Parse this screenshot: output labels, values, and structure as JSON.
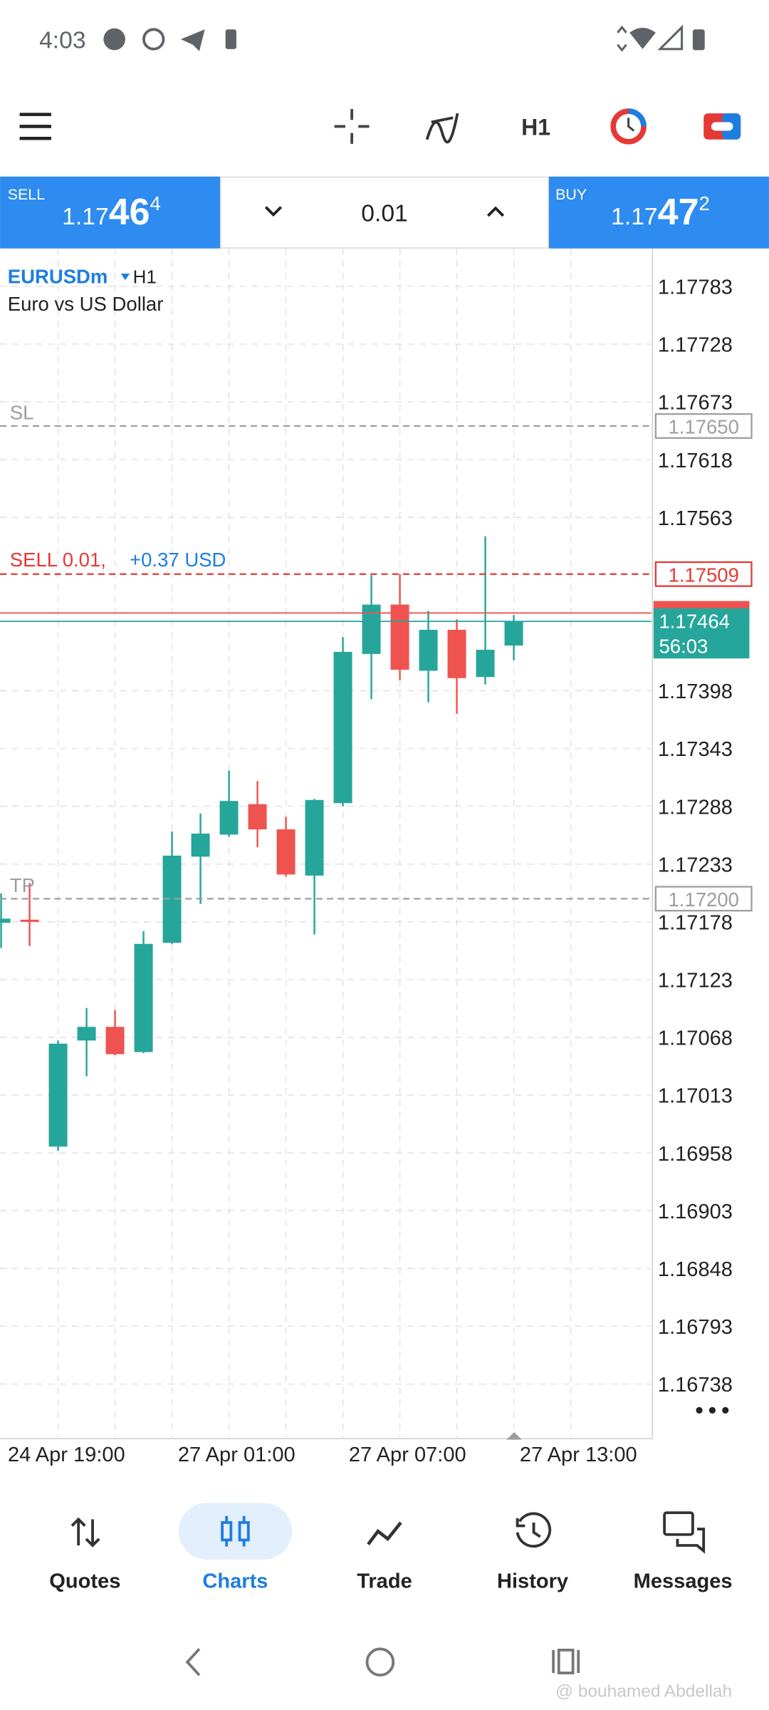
{
  "status_bar": {
    "time": "4:03"
  },
  "toolbar": {
    "timeframe": "H1"
  },
  "trade_panel": {
    "sell": {
      "label": "SELL",
      "price": {
        "prefix": "1.17",
        "main": "46",
        "suffix": "4"
      }
    },
    "volume": "0.01",
    "buy": {
      "label": "BUY",
      "price": {
        "prefix": "1.17",
        "main": "47",
        "suffix": "2"
      }
    }
  },
  "chart_data": {
    "type": "candlestick",
    "symbol": "EURUSDm",
    "timeframe": "H1",
    "description": "Euro vs US Dollar",
    "categories": [
      null,
      null,
      "24 Apr 19:00",
      null,
      null,
      null,
      null,
      null,
      "27 Apr 01:00",
      null,
      null,
      null,
      null,
      null,
      "27 Apr 07:00",
      null,
      null,
      null,
      null,
      null,
      "27 Apr 13:00"
    ],
    "open": [
      1.17177,
      1.1718,
      1.16964,
      1.17065,
      1.17078,
      1.17054,
      1.17158,
      1.1724,
      1.17261,
      1.1729,
      1.17266,
      1.17222,
      1.17291,
      1.17433,
      1.1748,
      1.17417,
      1.17456,
      1.17411,
      1.17441,
      null,
      null
    ],
    "high": [
      1.17205,
      1.17215,
      1.17065,
      1.17096,
      1.17094,
      1.17169,
      1.17264,
      1.17281,
      1.17322,
      1.17312,
      1.17278,
      1.17295,
      1.17449,
      1.17508,
      1.17509,
      1.17474,
      1.17466,
      1.17545,
      1.1747,
      null,
      null
    ],
    "low": [
      1.17153,
      1.17155,
      1.1696,
      1.17031,
      1.17051,
      1.17053,
      1.17157,
      1.17195,
      1.17259,
      1.17249,
      1.17221,
      1.17166,
      1.17288,
      1.1739,
      1.17408,
      1.17387,
      1.17376,
      1.17404,
      1.17427,
      null,
      null
    ],
    "close": [
      1.17181,
      1.17178,
      1.17062,
      1.17078,
      1.17052,
      1.17157,
      1.17241,
      1.17262,
      1.17293,
      1.17266,
      1.17223,
      1.17294,
      1.17435,
      1.1748,
      1.17418,
      1.17456,
      1.1741,
      1.17437,
      1.17464,
      null,
      null
    ],
    "up_color": "#26a69a",
    "down_color": "#ef5350",
    "ylim": [
      1.16686,
      1.17819
    ],
    "yticks": [
      1.17783,
      1.17728,
      1.17673,
      1.17618,
      1.17563,
      1.17398,
      1.17343,
      1.17288,
      1.17233,
      1.17178,
      1.17123,
      1.17068,
      1.17013,
      1.16958,
      1.16903,
      1.16848,
      1.16793,
      1.16738
    ],
    "grid": true,
    "levels": [
      {
        "name": "SL",
        "price": 1.1765,
        "price_label": "1.17650",
        "color": "#9e9e9e"
      },
      {
        "name": "TP",
        "price": 1.172,
        "price_label": "1.17200",
        "color": "#9e9e9e"
      }
    ],
    "order": {
      "label": "SELL 0.01,",
      "profit": "+0.37 USD",
      "price": 1.17509,
      "price_label": "1.17509",
      "color": "#e53935"
    },
    "ask": {
      "price": 1.17472,
      "color": "#ef5350"
    },
    "bid": {
      "price": 1.17464,
      "price_label": "1.17464",
      "timer": "56:03",
      "color": "#26a69a"
    }
  },
  "bottom_nav": {
    "items": [
      "Quotes",
      "Charts",
      "Trade",
      "History",
      "Messages"
    ],
    "active": 1
  },
  "watermark": "@ bouhamed Abdellah"
}
